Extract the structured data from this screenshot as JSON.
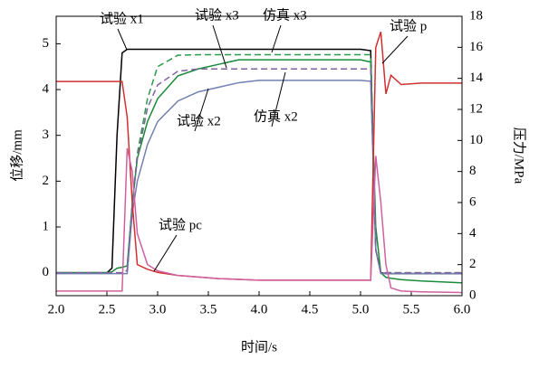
{
  "chart_data": {
    "type": "line",
    "xlabel": "时间/s",
    "ylabel": "位移/mm",
    "y2label": "压力/MPa",
    "x": [
      2.0,
      2.5,
      2.55,
      2.6,
      2.65,
      2.7,
      2.75,
      2.8,
      2.9,
      3.0,
      3.2,
      3.4,
      3.6,
      3.8,
      4.0,
      4.5,
      5.0,
      5.1,
      5.15,
      5.2,
      5.25,
      5.3,
      5.4,
      5.6,
      6.0
    ],
    "series": [
      {
        "name": "试验 x1",
        "color": "#000000",
        "style": "solid",
        "axis": "y",
        "values": [
          0,
          0,
          0.1,
          3.0,
          4.8,
          4.88,
          4.88,
          4.88,
          4.88,
          4.88,
          4.88,
          4.88,
          4.88,
          4.88,
          4.88,
          4.88,
          4.88,
          4.85,
          0.5,
          0.0,
          -0.02,
          -0.02,
          -0.02,
          -0.02,
          -0.02
        ]
      },
      {
        "name": "试验 x3",
        "color": "#1a8a3a",
        "style": "solid",
        "axis": "y",
        "values": [
          0,
          0,
          0.02,
          0.1,
          0.12,
          0.15,
          1.5,
          2.5,
          3.3,
          3.8,
          4.3,
          4.45,
          4.55,
          4.65,
          4.65,
          4.65,
          4.65,
          4.6,
          1.0,
          0.0,
          -0.1,
          -0.12,
          -0.15,
          -0.18,
          -0.22
        ]
      },
      {
        "name": "仿真 x3",
        "color": "#2a9a4a",
        "style": "dashed",
        "axis": "y",
        "values": [
          0,
          0,
          0,
          0,
          0,
          0.05,
          1.5,
          2.6,
          3.8,
          4.5,
          4.75,
          4.76,
          4.76,
          4.76,
          4.76,
          4.76,
          4.76,
          4.76,
          0.5,
          0,
          0,
          0,
          0,
          0,
          0
        ]
      },
      {
        "name": "试验 x2",
        "color": "#7080b0",
        "style": "solid",
        "axis": "y",
        "values": [
          -0.02,
          -0.02,
          -0.02,
          -0.02,
          -0.02,
          -0.02,
          1.3,
          2.0,
          2.8,
          3.3,
          3.75,
          3.95,
          4.05,
          4.15,
          4.2,
          4.2,
          4.2,
          4.18,
          0.5,
          -0.02,
          -0.02,
          -0.02,
          -0.02,
          -0.02,
          -0.02
        ]
      },
      {
        "name": "仿真 x2",
        "color": "#8060a0",
        "style": "dashed",
        "axis": "y",
        "values": [
          0,
          0,
          0,
          0,
          0,
          0.05,
          1.5,
          2.5,
          3.6,
          4.1,
          4.4,
          4.45,
          4.45,
          4.45,
          4.45,
          4.45,
          4.45,
          4.45,
          0.5,
          0,
          0,
          0,
          0,
          0,
          0
        ]
      },
      {
        "name": "试验 p",
        "color": "#d03030",
        "style": "solid",
        "axis": "y2",
        "values": [
          13.8,
          13.8,
          13.8,
          13.8,
          13.8,
          11.5,
          6.0,
          2.0,
          1.7,
          1.5,
          1.3,
          1.2,
          1.1,
          1.05,
          1.0,
          1.0,
          1.0,
          1.0,
          16.0,
          17.0,
          13.0,
          14.2,
          13.6,
          13.7,
          13.7
        ]
      },
      {
        "name": "试验 pc",
        "color": "#d060a0",
        "style": "solid",
        "axis": "y2",
        "values": [
          0.3,
          0.3,
          0.3,
          0.3,
          0.3,
          9.5,
          8.0,
          4.0,
          2.0,
          1.6,
          1.3,
          1.2,
          1.1,
          1.05,
          1.0,
          1.0,
          1.0,
          1.0,
          9.0,
          6.0,
          2.0,
          0.5,
          0.3,
          0.25,
          0.2
        ]
      }
    ],
    "xlim": [
      2.0,
      6.0
    ],
    "xticks": [
      {
        "value": 2.0,
        "label": "2.0"
      },
      2.5,
      {
        "value": 3.0,
        "label": "3.0"
      },
      3.5,
      {
        "value": 4.0,
        "label": "4.0"
      },
      4.5,
      {
        "value": 5.0,
        "label": "5.0"
      },
      5.5,
      {
        "value": 6.0,
        "label": "6.0"
      }
    ],
    "ylim": [
      -0.5,
      5.6
    ],
    "yticks": [
      0,
      1,
      2,
      3,
      4,
      5
    ],
    "y2lim": [
      0,
      18
    ],
    "y2ticks": [
      0,
      2,
      4,
      6,
      8,
      10,
      12,
      14,
      16,
      18
    ]
  }
}
